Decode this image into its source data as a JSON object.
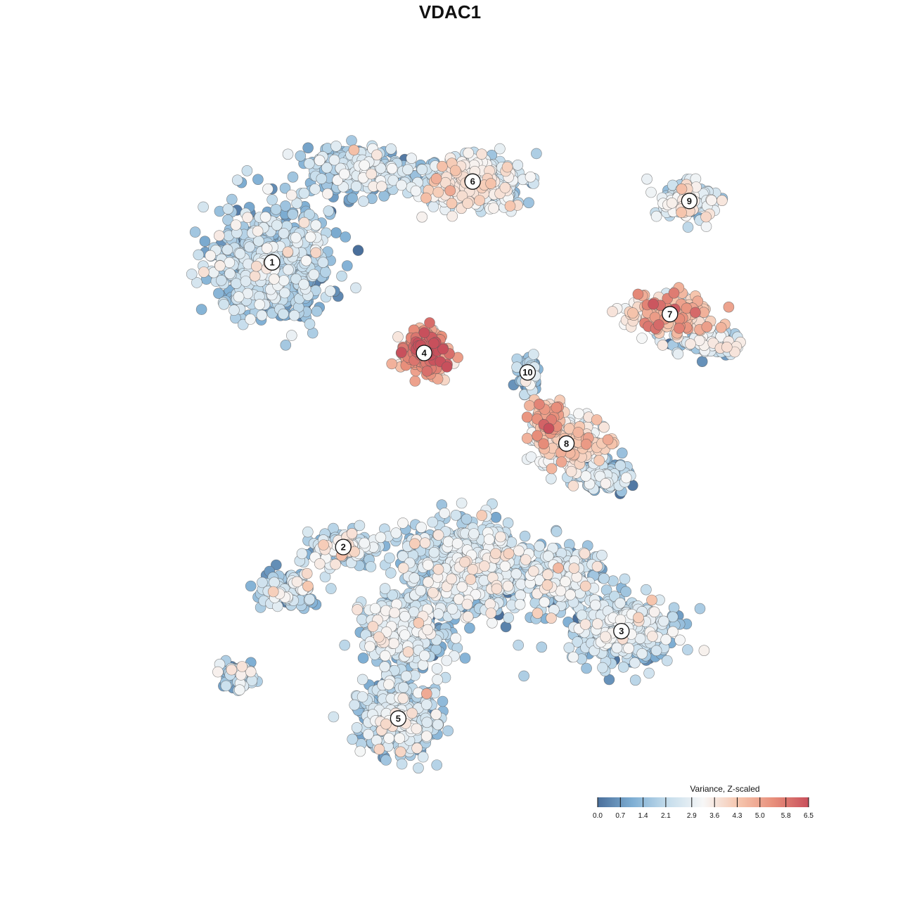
{
  "chart_data": {
    "type": "scatter",
    "title": "VDAC1",
    "xlabel": "",
    "ylabel": "",
    "grid": false,
    "colorbar": {
      "title": "Variance, Z-scaled",
      "min": 0.0,
      "max": 6.5,
      "ticks": [
        "0.0",
        "0.7",
        "1.4",
        "2.1",
        "2.9",
        "3.6",
        "4.3",
        "5.0",
        "5.8",
        "6.5"
      ],
      "colors": [
        "#4a6f9b",
        "#7fafd4",
        "#c5ddec",
        "#f7f7f7",
        "#f6c6ae",
        "#e88f7b",
        "#c8505c"
      ],
      "placement": "bottom-right"
    },
    "clusters": [
      {
        "label": "1",
        "x": -0.55,
        "y": 0.58,
        "spread_x": 0.16,
        "spread_y": 0.16,
        "mean": 1.7,
        "n": 700
      },
      {
        "label": "2",
        "x": -0.33,
        "y": -0.3,
        "spread_x": 0.09,
        "spread_y": 0.05,
        "mean": 2.4,
        "n": 160
      },
      {
        "label": "3",
        "x": 0.53,
        "y": -0.56,
        "spread_x": 0.14,
        "spread_y": 0.09,
        "mean": 1.9,
        "n": 500
      },
      {
        "label": "4",
        "x": -0.08,
        "y": 0.3,
        "spread_x": 0.06,
        "spread_y": 0.06,
        "mean": 5.0,
        "n": 260
      },
      {
        "label": "5",
        "x": -0.16,
        "y": -0.83,
        "spread_x": 0.11,
        "spread_y": 0.1,
        "mean": 1.9,
        "n": 450
      },
      {
        "label": "6",
        "x": 0.07,
        "y": 0.83,
        "spread_x": 0.14,
        "spread_y": 0.07,
        "mean": 2.7,
        "n": 380
      },
      {
        "label": "7",
        "x": 0.68,
        "y": 0.42,
        "spread_x": 0.12,
        "spread_y": 0.05,
        "mean": 4.2,
        "n": 220
      },
      {
        "label": "8",
        "x": 0.36,
        "y": 0.02,
        "spread_x": 0.1,
        "spread_y": 0.07,
        "mean": 3.4,
        "n": 260
      },
      {
        "label": "9",
        "x": 0.74,
        "y": 0.77,
        "spread_x": 0.08,
        "spread_y": 0.05,
        "mean": 2.6,
        "n": 140
      },
      {
        "label": "10",
        "x": 0.24,
        "y": 0.24,
        "spread_x": 0.03,
        "spread_y": 0.05,
        "mean": 1.3,
        "n": 70
      }
    ],
    "extra_groups": [
      {
        "x": 0.05,
        "y": -0.37,
        "spread_x": 0.18,
        "spread_y": 0.13,
        "mean": 2.1,
        "n": 650
      },
      {
        "x": -0.15,
        "y": -0.56,
        "spread_x": 0.12,
        "spread_y": 0.1,
        "mean": 2.0,
        "n": 350
      },
      {
        "x": 0.34,
        "y": -0.4,
        "spread_x": 0.1,
        "spread_y": 0.09,
        "mean": 2.0,
        "n": 250
      },
      {
        "x": 0.48,
        "y": -0.08,
        "spread_x": 0.07,
        "spread_y": 0.04,
        "mean": 1.6,
        "n": 120
      },
      {
        "x": -0.5,
        "y": -0.43,
        "spread_x": 0.08,
        "spread_y": 0.05,
        "mean": 1.8,
        "n": 120
      },
      {
        "x": -0.65,
        "y": -0.7,
        "spread_x": 0.06,
        "spread_y": 0.04,
        "mean": 1.9,
        "n": 50
      },
      {
        "x": -0.28,
        "y": 0.86,
        "spread_x": 0.14,
        "spread_y": 0.06,
        "mean": 1.8,
        "n": 300
      },
      {
        "x": 0.3,
        "y": 0.1,
        "spread_x": 0.05,
        "spread_y": 0.05,
        "mean": 4.6,
        "n": 60
      },
      {
        "x": 0.8,
        "y": 0.33,
        "spread_x": 0.09,
        "spread_y": 0.04,
        "mean": 2.2,
        "n": 110
      }
    ]
  }
}
